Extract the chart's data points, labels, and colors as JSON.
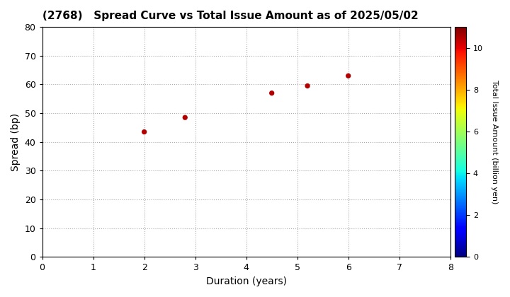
{
  "title": "(2768)   Spread Curve vs Total Issue Amount as of 2025/05/02",
  "xlabel": "Duration (years)",
  "ylabel": "Spread (bp)",
  "colorbar_label": "Total Issue Amount (billion yen)",
  "xlim": [
    0,
    8
  ],
  "ylim": [
    0,
    80
  ],
  "xticks": [
    0,
    1,
    2,
    3,
    4,
    5,
    6,
    7,
    8
  ],
  "yticks": [
    0,
    10,
    20,
    30,
    40,
    50,
    60,
    70,
    80
  ],
  "colorbar_min": 0,
  "colorbar_max": 11,
  "colorbar_ticks": [
    0,
    2,
    4,
    6,
    8,
    10
  ],
  "points": [
    {
      "duration": 2.0,
      "spread": 43.5,
      "amount": 10.5
    },
    {
      "duration": 2.8,
      "spread": 48.5,
      "amount": 10.5
    },
    {
      "duration": 4.5,
      "spread": 57.0,
      "amount": 10.5
    },
    {
      "duration": 5.2,
      "spread": 59.5,
      "amount": 10.5
    },
    {
      "duration": 6.0,
      "spread": 63.0,
      "amount": 10.5
    }
  ],
  "marker_size": 18,
  "background_color": "#ffffff",
  "grid_color": "#aaaaaa",
  "grid_style": "dotted"
}
